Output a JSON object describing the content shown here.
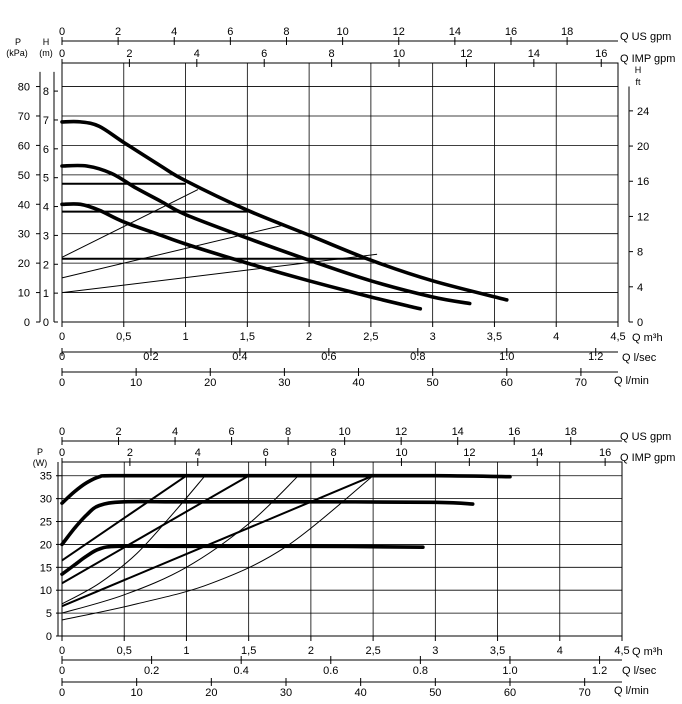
{
  "chart_data": [
    {
      "type": "line",
      "title": "",
      "axes": {
        "q_m3h": {
          "label": "Q m³h",
          "ticks": [
            "0",
            "0,5",
            "1",
            "1,5",
            "2",
            "2,5",
            "3",
            "3,5",
            "4",
            "4,5"
          ],
          "range": [
            0,
            4.5
          ]
        },
        "q_usgpm": {
          "label": "Q US gpm",
          "ticks": [
            "0",
            "2",
            "4",
            "6",
            "8",
            "10",
            "12",
            "14",
            "16",
            "18"
          ],
          "factor": 4.403
        },
        "q_impgpm": {
          "label": "Q IMP gpm",
          "ticks": [
            "0",
            "2",
            "4",
            "6",
            "8",
            "10",
            "12",
            "14",
            "16"
          ],
          "factor": 3.666
        },
        "q_ls": {
          "label": "Q l/sec",
          "ticks": [
            "0",
            "0.2",
            "0.4",
            "0.6",
            "0.8",
            "1.0",
            "1.2"
          ],
          "factor": 0.2778
        },
        "q_lmin": {
          "label": "Q l/min",
          "ticks": [
            "0",
            "10",
            "20",
            "30",
            "40",
            "50",
            "60",
            "70"
          ],
          "factor": 16.667
        },
        "p_kpa": {
          "label": "P (kPa)",
          "ticks": [
            "0",
            "10",
            "20",
            "30",
            "40",
            "50",
            "60",
            "70",
            "80"
          ],
          "range": [
            0,
            88
          ]
        },
        "h_m": {
          "label": "H (m)",
          "ticks": [
            "0",
            "1",
            "2",
            "3",
            "4",
            "5",
            "6",
            "7",
            "8"
          ]
        },
        "h_ft": {
          "label_h": "H",
          "label_ft": "ft",
          "ticks": [
            "0",
            "4",
            "8",
            "12",
            "16",
            "20",
            "24"
          ]
        }
      },
      "series": [
        {
          "x": [
            0,
            0.15,
            0.3,
            0.5,
            0.8,
            1.0,
            1.5,
            2.0,
            2.5,
            3.0,
            3.6
          ],
          "y": [
            68,
            68,
            66.5,
            61,
            53,
            48,
            38,
            29.5,
            21,
            14,
            7.5
          ]
        },
        {
          "x": [
            0,
            0.2,
            0.4,
            0.6,
            0.8,
            1.0,
            1.5,
            2.0,
            2.5,
            3.0,
            3.3
          ],
          "y": [
            53,
            53,
            50.5,
            45.5,
            41,
            36.5,
            28.5,
            21,
            14,
            8.5,
            6.3
          ]
        },
        {
          "x": [
            0,
            0.15,
            0.3,
            0.5,
            0.8,
            1.0,
            1.5,
            2.0,
            2.5,
            2.9
          ],
          "y": [
            40,
            40,
            38,
            34,
            29.5,
            26.5,
            20,
            14,
            8.5,
            4.5
          ]
        }
      ],
      "operating_lines": [
        {
          "x": [
            0,
            1.0
          ],
          "y": [
            47,
            47
          ]
        },
        {
          "x": [
            0,
            1.5
          ],
          "y": [
            37.5,
            37.5
          ]
        },
        {
          "x": [
            0,
            2.5
          ],
          "y": [
            21.5,
            21.5
          ]
        }
      ],
      "system_curves": [
        {
          "x": [
            0,
            1.1
          ],
          "y": [
            22,
            45
          ]
        },
        {
          "x": [
            0,
            1.8
          ],
          "y": [
            15,
            33
          ]
        },
        {
          "x": [
            0,
            2.55
          ],
          "y": [
            10,
            23
          ]
        }
      ]
    },
    {
      "type": "line",
      "title": "",
      "axes": {
        "q_m3h": {
          "label": "Q m³h",
          "ticks": [
            "0",
            "0,5",
            "1",
            "1,5",
            "2",
            "2,5",
            "3",
            "3,5",
            "4",
            "4,5"
          ],
          "range": [
            0,
            4.5
          ]
        },
        "q_usgpm": {
          "label": "Q US gpm",
          "ticks": [
            "0",
            "2",
            "4",
            "6",
            "8",
            "10",
            "12",
            "14",
            "16",
            "18"
          ]
        },
        "q_impgpm": {
          "label": "Q IMP gpm",
          "ticks": [
            "0",
            "2",
            "4",
            "6",
            "8",
            "10",
            "12",
            "14",
            "16"
          ]
        },
        "q_ls": {
          "label": "Q l/sec",
          "ticks": [
            "0",
            "0.2",
            "0.4",
            "0.6",
            "0.8",
            "1.0",
            "1.2"
          ]
        },
        "q_lmin": {
          "label": "Q l/min",
          "ticks": [
            "0",
            "10",
            "20",
            "30",
            "40",
            "50",
            "60",
            "70"
          ]
        },
        "p_w": {
          "label": "P (W)",
          "ticks": [
            "0",
            "5",
            "10",
            "15",
            "20",
            "25",
            "30",
            "35"
          ],
          "range": [
            0,
            38
          ]
        }
      },
      "series": [
        {
          "x": [
            0,
            0.1,
            0.2,
            0.3,
            0.4,
            1.0,
            2.0,
            3.0,
            3.6
          ],
          "y": [
            29,
            31.5,
            33.5,
            34.8,
            35,
            35,
            35,
            35,
            34.8
          ]
        },
        {
          "x": [
            0,
            0.1,
            0.2,
            0.3,
            0.5,
            1.0,
            2.0,
            3.0,
            3.3
          ],
          "y": [
            20,
            23.5,
            26.5,
            28.5,
            29.3,
            29.3,
            29.3,
            29.2,
            28.8
          ]
        },
        {
          "x": [
            0,
            0.1,
            0.2,
            0.3,
            0.45,
            1.0,
            2.0,
            2.9
          ],
          "y": [
            13.5,
            15.5,
            17.5,
            19,
            19.6,
            19.6,
            19.6,
            19.4
          ]
        }
      ],
      "operating_lines": [
        {
          "x": [
            0,
            1.0
          ],
          "y": [
            16.5,
            35
          ]
        },
        {
          "x": [
            0,
            1.5
          ],
          "y": [
            11.5,
            35
          ]
        },
        {
          "x": [
            0,
            2.5
          ],
          "y": [
            6.5,
            35
          ]
        }
      ],
      "system_curves": [
        {
          "x": [
            0,
            0.3,
            0.6,
            0.9,
            1.15
          ],
          "y": [
            7,
            11.5,
            18,
            27,
            35
          ]
        },
        {
          "x": [
            0,
            0.5,
            1.0,
            1.5,
            1.9
          ],
          "y": [
            5,
            9,
            15,
            24.5,
            35
          ]
        },
        {
          "x": [
            0,
            0.6,
            1.2,
            1.8,
            2.5
          ],
          "y": [
            3.5,
            7,
            11.5,
            19.5,
            35
          ]
        }
      ]
    }
  ]
}
